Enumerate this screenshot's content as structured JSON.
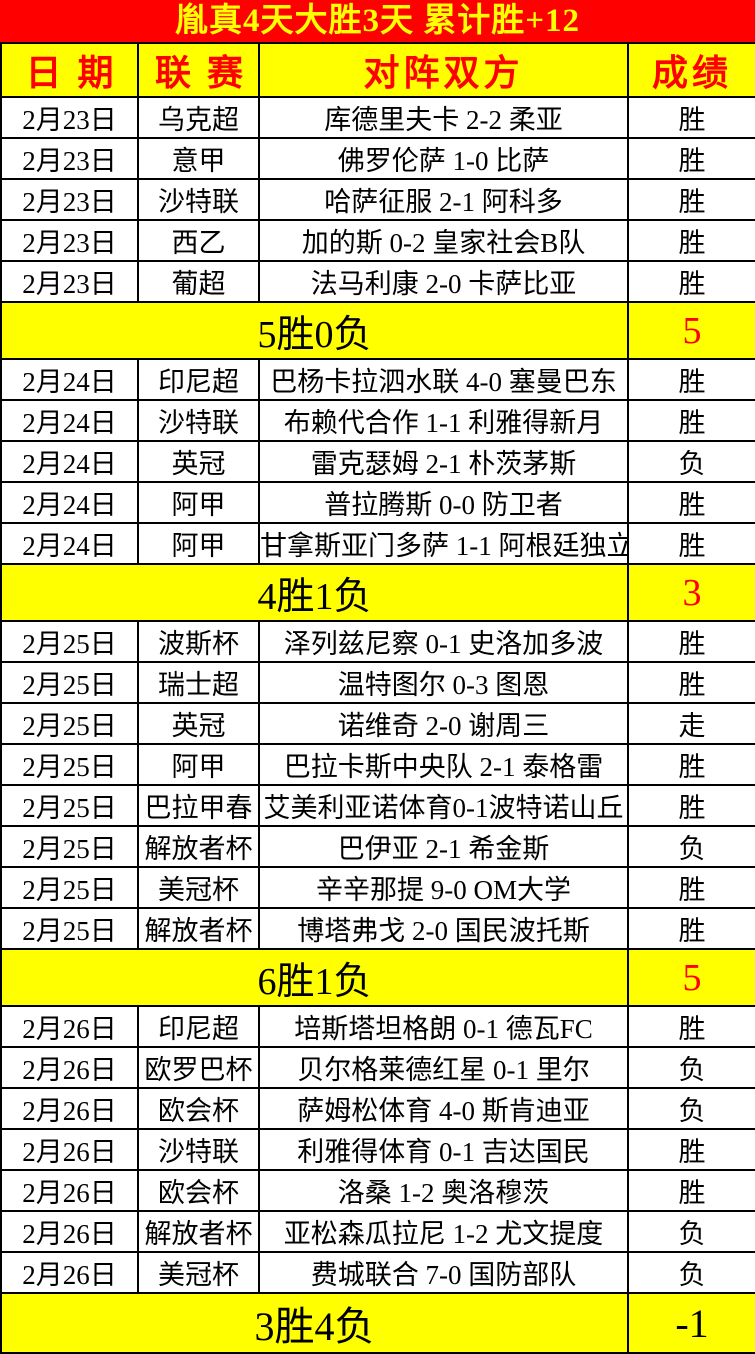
{
  "title": "胤真4天大胜3天  累计胜+12",
  "columns": [
    "日期",
    "联赛",
    "对阵双方",
    "成绩"
  ],
  "colors": {
    "red": "#fe0000",
    "yellow": "#ffff00",
    "win_text": "#ffee00",
    "summary_positive": "#fe0000",
    "summary_negative": "#000000"
  },
  "sections": [
    {
      "rows": [
        {
          "date": "2月23日",
          "league": "乌克超",
          "match": "库德里夫卡 2-2 柔亚",
          "result": "胜",
          "result_style": "win"
        },
        {
          "date": "2月23日",
          "league": "意甲",
          "match": "佛罗伦萨 1-0 比萨",
          "result": "胜",
          "result_style": "win"
        },
        {
          "date": "2月23日",
          "league": "沙特联",
          "match": "哈萨征服 2-1 阿科多",
          "result": "胜",
          "result_style": "win"
        },
        {
          "date": "2月23日",
          "league": "西乙",
          "match": "加的斯 0-2 皇家社会B队",
          "result": "胜",
          "result_style": "win"
        },
        {
          "date": "2月23日",
          "league": "葡超",
          "match": "法马利康 2-0 卡萨比亚",
          "result": "胜",
          "result_style": "win"
        }
      ],
      "summary": {
        "label": "5胜0负",
        "score": "5",
        "score_color": "#fe0000"
      }
    },
    {
      "rows": [
        {
          "date": "2月24日",
          "league": "印尼超",
          "match": "巴杨卡拉泗水联 4-0 塞曼巴东",
          "result": "胜",
          "result_style": "win"
        },
        {
          "date": "2月24日",
          "league": "沙特联",
          "match": "布赖代合作 1-1 利雅得新月",
          "result": "胜",
          "result_style": "win"
        },
        {
          "date": "2月24日",
          "league": "英冠",
          "match": "雷克瑟姆 2-1 朴茨茅斯",
          "result": "负",
          "result_style": "loss"
        },
        {
          "date": "2月24日",
          "league": "阿甲",
          "match": "普拉腾斯 0-0 防卫者",
          "result": "胜",
          "result_style": "win"
        },
        {
          "date": "2月24日",
          "league": "阿甲",
          "match": "甘拿斯亚门多萨 1-1 阿根廷独立",
          "result": "胜",
          "result_style": "win"
        }
      ],
      "summary": {
        "label": "4胜1负",
        "score": "3",
        "score_color": "#fe0000"
      }
    },
    {
      "rows": [
        {
          "date": "2月25日",
          "league": "波斯杯",
          "match": "泽列兹尼察 0-1 史洛加多波",
          "result": "胜",
          "result_style": "win"
        },
        {
          "date": "2月25日",
          "league": "瑞士超",
          "match": "温特图尔 0-3 图恩",
          "result": "胜",
          "result_style": "win"
        },
        {
          "date": "2月25日",
          "league": "英冠",
          "match": "诺维奇 2-0 谢周三",
          "result": "走",
          "result_style": "push"
        },
        {
          "date": "2月25日",
          "league": "阿甲",
          "match": "巴拉卡斯中央队 2-1 泰格雷",
          "result": "胜",
          "result_style": "win"
        },
        {
          "date": "2月25日",
          "league": "巴拉甲春",
          "match": "艾美利亚诺体育0-1波特诺山丘",
          "result": "胜",
          "result_style": "win"
        },
        {
          "date": "2月25日",
          "league": "解放者杯",
          "match": "巴伊亚 2-1 希金斯",
          "result": "负",
          "result_style": "loss"
        },
        {
          "date": "2月25日",
          "league": "美冠杯",
          "match": "辛辛那提 9-0 OM大学",
          "result": "胜",
          "result_style": "win"
        },
        {
          "date": "2月25日",
          "league": "解放者杯",
          "match": "博塔弗戈 2-0 国民波托斯",
          "result": "胜",
          "result_style": "win"
        }
      ],
      "summary": {
        "label": "6胜1负",
        "score": "5",
        "score_color": "#fe0000"
      }
    },
    {
      "rows": [
        {
          "date": "2月26日",
          "league": "印尼超",
          "match": "培斯塔坦格朗 0-1 德瓦FC",
          "result": "胜",
          "result_style": "win"
        },
        {
          "date": "2月26日",
          "league": "欧罗巴杯",
          "match": "贝尔格莱德红星 0-1 里尔",
          "result": "负",
          "result_style": "loss"
        },
        {
          "date": "2月26日",
          "league": "欧会杯",
          "match": "萨姆松体育 4-0 斯肯迪亚",
          "result": "负",
          "result_style": "loss"
        },
        {
          "date": "2月26日",
          "league": "沙特联",
          "match": "利雅得体育 0-1 吉达国民",
          "result": "胜",
          "result_style": "win"
        },
        {
          "date": "2月26日",
          "league": "欧会杯",
          "match": "洛桑 1-2 奥洛穆茨",
          "result": "胜",
          "result_style": "win"
        },
        {
          "date": "2月26日",
          "league": "解放者杯",
          "match": "亚松森瓜拉尼 1-2 尤文提度",
          "result": "负",
          "result_style": "loss"
        },
        {
          "date": "2月26日",
          "league": "美冠杯",
          "match": "费城联合 7-0 国防部队",
          "result": "负",
          "result_style": "loss"
        }
      ],
      "summary": {
        "label": "3胜4负",
        "score": "-1",
        "score_color": "#000000"
      }
    }
  ]
}
